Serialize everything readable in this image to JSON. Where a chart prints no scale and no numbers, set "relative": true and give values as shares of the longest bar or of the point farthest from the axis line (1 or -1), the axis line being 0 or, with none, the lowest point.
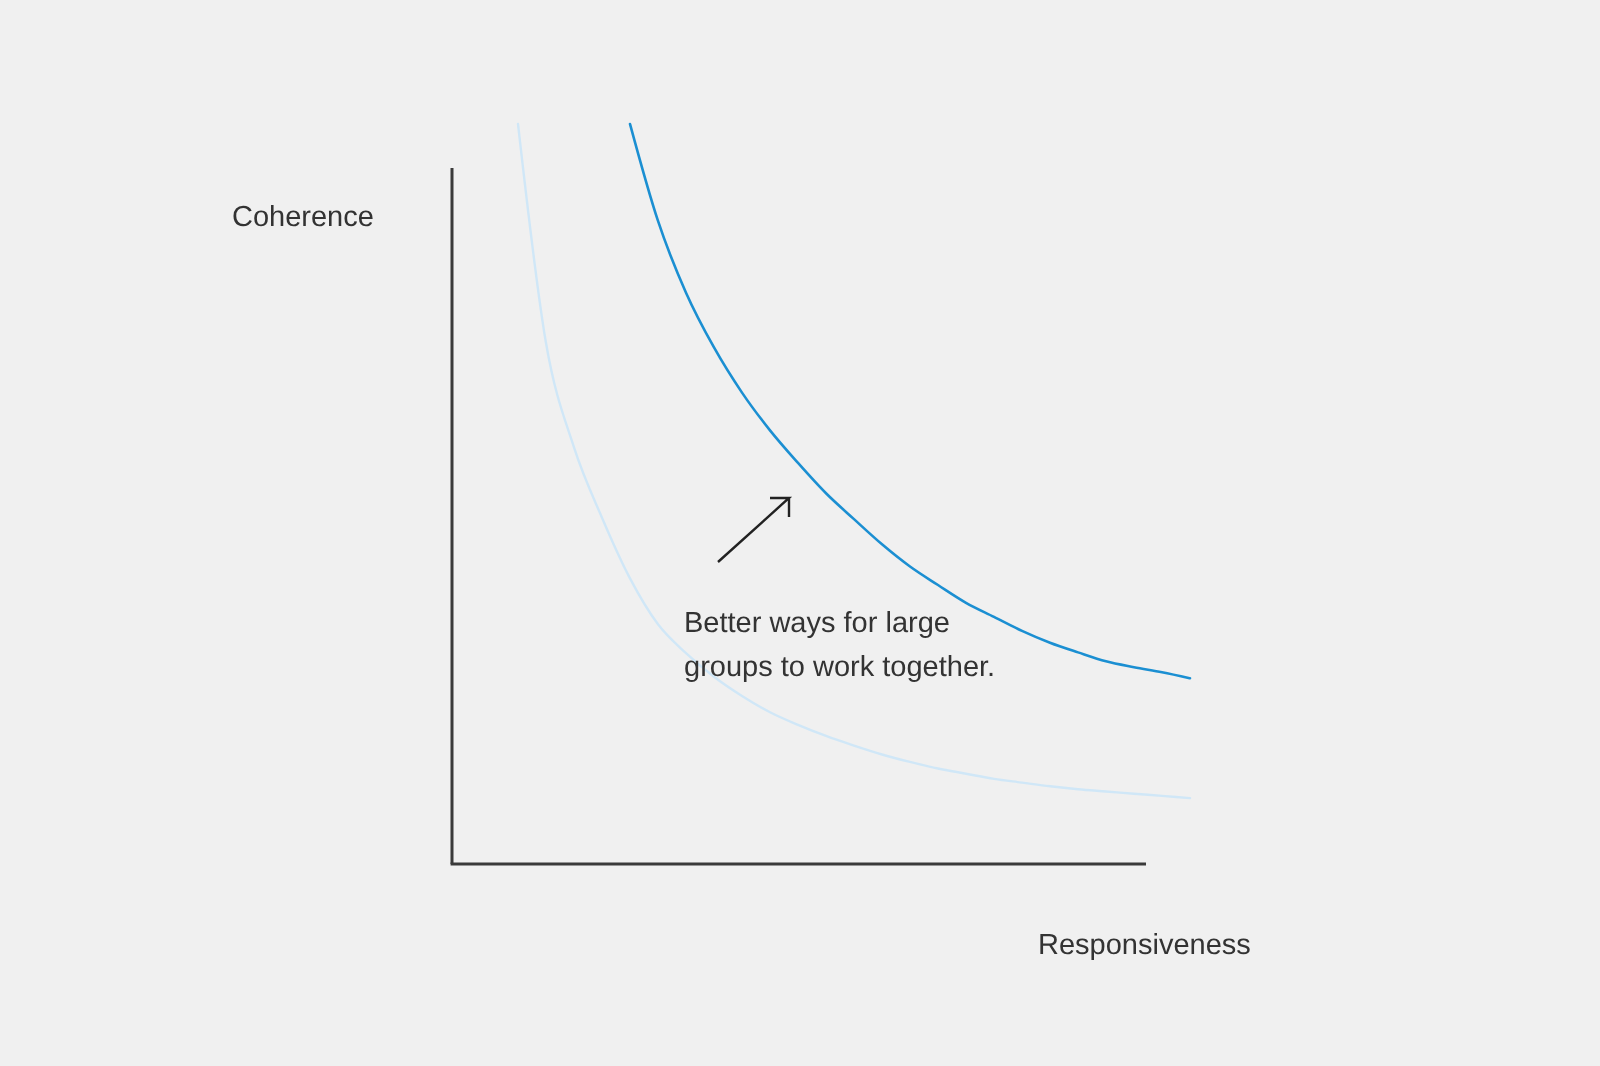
{
  "chart_data": {
    "type": "line",
    "relative": true,
    "xlabel": "Responsiveness",
    "ylabel": "Coherence",
    "annotations": [
      "Better ways for large groups to work together."
    ],
    "line_style": "solid",
    "categories": [
      null,
      null,
      null,
      null,
      null,
      null,
      null,
      null,
      null,
      null,
      null,
      null,
      null,
      null,
      null,
      null,
      null,
      null,
      null,
      null,
      null,
      null,
      null,
      null,
      null
    ],
    "series": [
      {
        "color": "#d0e7f7",
        "values": [
          1.0,
          0.704,
          0.563,
          0.468,
          0.386,
          0.324,
          0.285,
          0.253,
          0.227,
          0.205,
          0.188,
          0.173,
          0.16,
          0.148,
          0.138,
          0.129,
          0.122,
          0.115,
          0.11,
          0.105,
          0.101,
          0.098,
          0.095,
          0.092,
          0.089
        ]
      },
      {
        "color": "#1b8fd2",
        "values": [
          null,
          null,
          null,
          null,
          1.0,
          0.869,
          0.772,
          0.698,
          0.637,
          0.586,
          0.542,
          0.501,
          0.466,
          0.432,
          0.402,
          0.377,
          0.353,
          0.334,
          0.315,
          0.299,
          0.286,
          0.274,
          0.266,
          0.259,
          0.251
        ]
      }
    ]
  }
}
